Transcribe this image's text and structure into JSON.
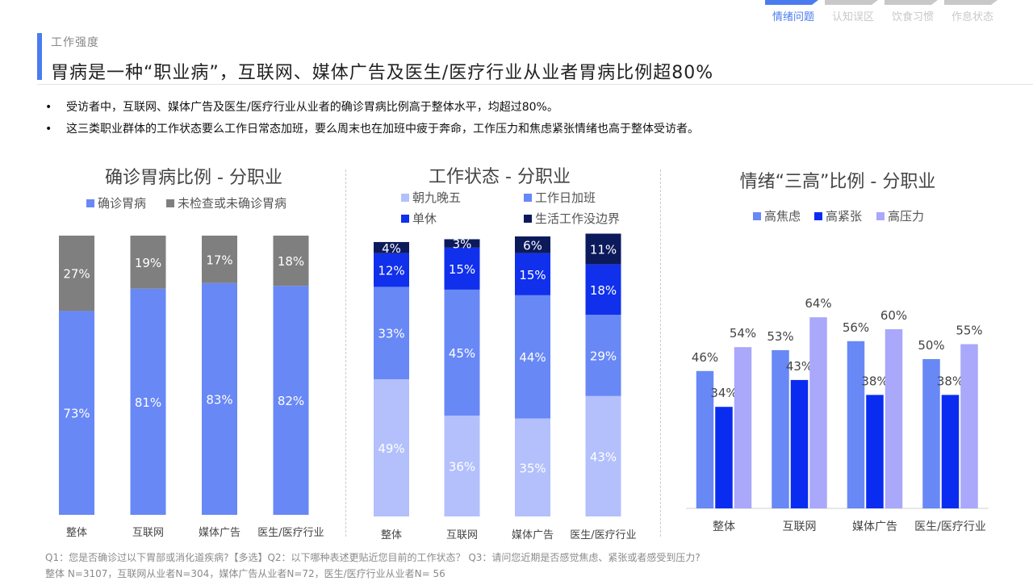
{
  "nav": {
    "tabs": [
      {
        "label": "情绪问题",
        "active": true
      },
      {
        "label": "认知误区",
        "active": false
      },
      {
        "label": "饮食习惯",
        "active": false
      },
      {
        "label": "作息状态",
        "active": false
      }
    ],
    "active_color": "#4a7cf0",
    "inactive_color": "#c8c8c8"
  },
  "header": {
    "section_label": "工作强度",
    "title": "胃病是一种“职业病”，互联网、媒体广告及医生/医疗行业从业者胃病比例超80%",
    "accent_color": "#4a7cf0"
  },
  "bullets": [
    "受访者中，互联网、媒体广告及医生/医疗行业从业者的确诊胃病比例高于整体水平，均超过80%。",
    "这三类职业群体的工作状态要么工作日常态加班，要么周末也在加班中疲于奔命，工作压力和焦虑紧张情绪也高于整体受访者。"
  ],
  "bullet_symbol": "•",
  "footnotes": [
    "Q1：您是否确诊过以下胃部或消化道疾病?【多选】Q2：以下哪种表述更贴近您目前的工作状态？ Q3：请问您近期是否感觉焦虑、紧张或者感受到压力?",
    "整体 N=3107，互联网从业者N=304，媒体广告从业者N=72，医生/医疗行业从业者N= 56"
  ],
  "chart_data": [
    {
      "type": "bar",
      "stacked": true,
      "percent": true,
      "title": "确诊胃病比例 - 分职业",
      "categories": [
        "整体",
        "互联网",
        "媒体广告",
        "医生/医疗行业"
      ],
      "series": [
        {
          "name": "确诊胃病",
          "values": [
            73,
            81,
            83,
            82
          ],
          "color": "#6888f6",
          "label_color": "#ffffff"
        },
        {
          "name": "未检查或未确诊胃病",
          "values": [
            27,
            19,
            17,
            18
          ],
          "color": "#7f7f7f",
          "label_color": "#ffffff"
        }
      ],
      "value_suffix": "%",
      "legend_position": "top"
    },
    {
      "type": "bar",
      "stacked": true,
      "percent": true,
      "title": "工作状态 - 分职业",
      "categories": [
        "整体",
        "互联网",
        "媒体广告",
        "医生/医疗行业"
      ],
      "series": [
        {
          "name": "朝九晚五",
          "values": [
            49,
            36,
            35,
            43
          ],
          "color": "#b3c0fc",
          "label_color": "#ffffff"
        },
        {
          "name": "工作日加班",
          "values": [
            33,
            45,
            44,
            29
          ],
          "color": "#6888f6",
          "label_color": "#ffffff"
        },
        {
          "name": "单休",
          "values": [
            12,
            15,
            15,
            18
          ],
          "color": "#1030ec",
          "label_color": "#ffffff"
        },
        {
          "name": "生活工作没边界",
          "values": [
            4,
            3,
            6,
            11
          ],
          "color": "#0c1a5c",
          "label_color": "#ffffff"
        }
      ],
      "value_suffix": "%",
      "legend_position": "top"
    },
    {
      "type": "bar",
      "stacked": false,
      "title": "情绪“三高”比例 - 分职业",
      "categories": [
        "整体",
        "互联网",
        "媒体广告",
        "医生/医疗行业"
      ],
      "series": [
        {
          "name": "高焦虑",
          "values": [
            46,
            53,
            56,
            50
          ],
          "color": "#6888f6"
        },
        {
          "name": "高紧张",
          "values": [
            34,
            43,
            38,
            38
          ],
          "color": "#0a2cf0"
        },
        {
          "name": "高压力",
          "values": [
            54,
            64,
            60,
            55
          ],
          "color": "#a9a8fa"
        }
      ],
      "value_suffix": "%",
      "ylim": [
        0,
        100
      ],
      "legend_position": "top"
    }
  ]
}
